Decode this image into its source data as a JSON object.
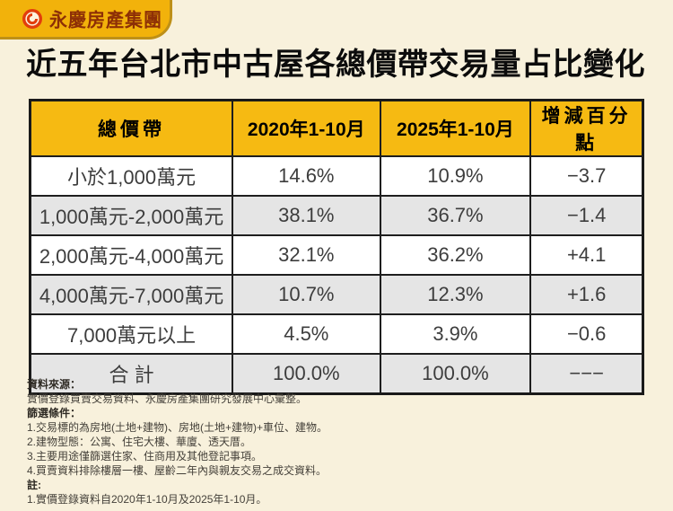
{
  "page": {
    "background": "#F8F1DC"
  },
  "logo": {
    "text": "永慶房產集團",
    "badge_color": "#F2B20B",
    "text_color": "#8D2F06",
    "icon": "yungching-ring-icon",
    "icon_color": "#E23D0C"
  },
  "title": {
    "normal": "近五年台北市中古屋",
    "bold": "各總價帶交易量占比變化"
  },
  "table": {
    "header_bg": "#F6BA12",
    "alt_row_bg": "#E5E5E5",
    "columns": [
      "總價帶",
      "2020年1-10月",
      "2025年1-10月",
      "增減百分點"
    ],
    "rows": [
      {
        "band": "小於1,000萬元",
        "y2020": "14.6%",
        "y2025": "10.9%",
        "change": "−3.7"
      },
      {
        "band": "1,000萬元-2,000萬元",
        "y2020": "38.1%",
        "y2025": "36.7%",
        "change": "−1.4"
      },
      {
        "band": "2,000萬元-4,000萬元",
        "y2020": "32.1%",
        "y2025": "36.2%",
        "change": "+4.1"
      },
      {
        "band": "4,000萬元-7,000萬元",
        "y2020": "10.7%",
        "y2025": "12.3%",
        "change": "+1.6"
      },
      {
        "band": "7,000萬元以上",
        "y2020": "4.5%",
        "y2025": "3.9%",
        "change": "−0.6"
      },
      {
        "band": "合 計",
        "y2020": "100.0%",
        "y2025": "100.0%",
        "change": "−−−"
      }
    ]
  },
  "chart_data": {
    "type": "table",
    "title": "近五年台北市中古屋各總價帶交易量占比變化",
    "columns": [
      "總價帶",
      "2020年1-10月",
      "2025年1-10月",
      "增減百分點"
    ],
    "categories": [
      "小於1,000萬元",
      "1,000萬元-2,000萬元",
      "2,000萬元-4,000萬元",
      "4,000萬元-7,000萬元",
      "7,000萬元以上",
      "合計"
    ],
    "series": [
      {
        "name": "2020年1-10月 (%)",
        "values": [
          14.6,
          38.1,
          32.1,
          10.7,
          4.5,
          100.0
        ]
      },
      {
        "name": "2025年1-10月 (%)",
        "values": [
          10.9,
          36.7,
          36.2,
          12.3,
          3.9,
          100.0
        ]
      },
      {
        "name": "增減百分點",
        "values": [
          -3.7,
          -1.4,
          4.1,
          1.6,
          -0.6,
          null
        ]
      }
    ]
  },
  "footnotes": {
    "source_label": "資料來源：",
    "source_text": "實價登錄買賣交易資料、永慶房產集團研究發展中心彙整。",
    "filter_label": "篩選條件：",
    "filters": [
      "1.交易標的為房地(土地+建物)、房地(土地+建物)+車位、建物。",
      "2.建物型態：公寓、住宅大樓、華廈、透天厝。",
      "3.主要用途僅篩選住家、住商用及其他登記事項。",
      "4.買賣資料排除樓層一樓、屋齡二年內與親友交易之成交資料。"
    ],
    "note_label": "註:",
    "notes": [
      "1.實價登錄資料自2020年1-10月及2025年1-10月。"
    ]
  }
}
